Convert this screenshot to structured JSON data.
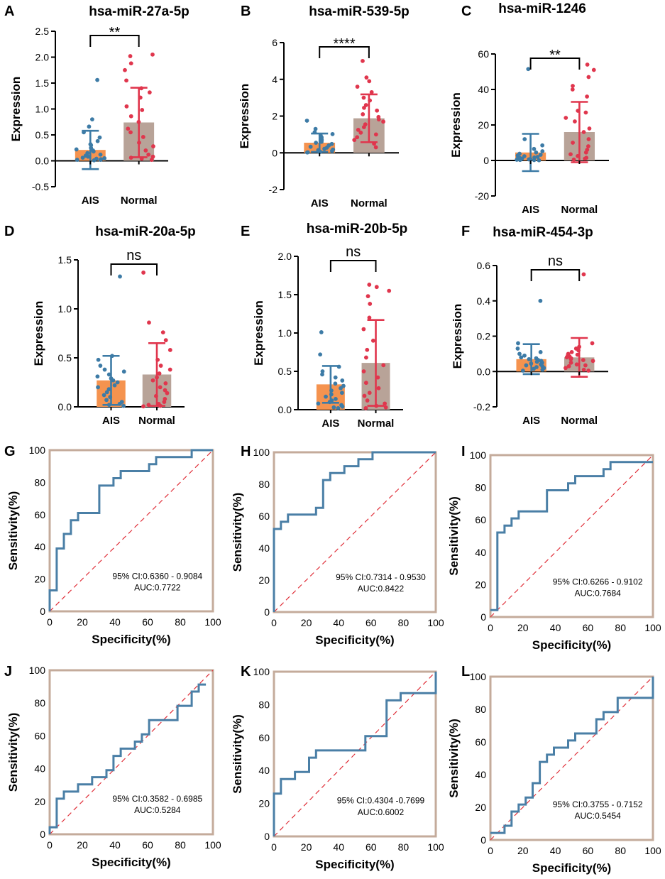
{
  "colors": {
    "ais_bar": "#f5934f",
    "normal_bar": "#b8a398",
    "ais_points": "#3d7ba6",
    "normal_points": "#e0364d",
    "roc_line": "#4a7fa6",
    "roc_frame": "#c4ab9b",
    "diag": "#e0303a"
  },
  "chart_data": [
    {
      "panel": "A",
      "type": "bar",
      "title": "hsa-miR-27a-5p",
      "ylabel": "Expression",
      "ylim": [
        -0.5,
        2.5
      ],
      "yticks": [
        -0.5,
        0.0,
        0.5,
        1.0,
        1.5,
        2.0,
        2.5
      ],
      "ytick_labels": [
        "-0.5",
        "0.0",
        "0.5",
        "1.0",
        "1.5",
        "2.0",
        "2.5"
      ],
      "significance": "**",
      "categories": [
        "AIS",
        "Normal"
      ],
      "series": [
        {
          "name": "AIS",
          "mean": 0.21,
          "sd": 0.37,
          "points": [
            1.56,
            0.8,
            0.66,
            0.55,
            0.45,
            0.38,
            0.32,
            0.3,
            0.25,
            0.22,
            0.2,
            0.18,
            0.15,
            0.12,
            0.1,
            0.08,
            0.06,
            0.05,
            0.04,
            0.03,
            0.02,
            0.02,
            0.01
          ]
        },
        {
          "name": "Normal",
          "mean": 0.74,
          "sd": 0.67,
          "points": [
            2.05,
            2.02,
            1.88,
            1.75,
            1.55,
            1.4,
            1.32,
            1.22,
            1.05,
            0.98,
            0.86,
            0.75,
            0.62,
            0.55,
            0.46,
            0.35,
            0.28,
            0.2,
            0.12,
            0.08,
            0.06,
            0.04,
            0.02
          ]
        }
      ]
    },
    {
      "panel": "B",
      "type": "bar",
      "title": "hsa-miR-539-5p",
      "ylabel": "Expression",
      "ylim": [
        -2,
        6
      ],
      "yticks": [
        -2,
        0,
        2,
        4,
        6
      ],
      "ytick_labels": [
        "-2",
        "0",
        "2",
        "4",
        "6"
      ],
      "significance": "****",
      "categories": [
        "AIS",
        "Normal"
      ],
      "series": [
        {
          "name": "AIS",
          "mean": 0.55,
          "sd": 0.5,
          "points": [
            1.75,
            1.3,
            1.12,
            1.02,
            0.95,
            0.85,
            0.78,
            0.7,
            0.6,
            0.55,
            0.48,
            0.4,
            0.33,
            0.28,
            0.22,
            0.18,
            0.15,
            0.1,
            0.08,
            0.05,
            0.04,
            0.03,
            0.02
          ]
        },
        {
          "name": "Normal",
          "mean": 1.88,
          "sd": 1.3,
          "points": [
            5.0,
            4.1,
            3.9,
            3.6,
            3.3,
            3.0,
            2.85,
            2.6,
            2.45,
            2.3,
            2.1,
            1.95,
            1.82,
            1.7,
            1.55,
            1.4,
            1.25,
            1.1,
            1.0,
            0.85,
            0.7,
            0.5,
            0.3
          ]
        }
      ]
    },
    {
      "panel": "C",
      "type": "bar",
      "title": "hsa-miR-1246",
      "ylabel": "Expression",
      "ylim": [
        -20,
        60
      ],
      "yticks": [
        -20,
        0,
        20,
        40,
        60
      ],
      "ytick_labels": [
        "-20",
        "0",
        "20",
        "40",
        "60"
      ],
      "significance": "**",
      "categories": [
        "AIS",
        "Normal"
      ],
      "series": [
        {
          "name": "AIS",
          "mean": 4.5,
          "sd": 10.5,
          "points": [
            51.5,
            12.0,
            8.5,
            6.5,
            5.2,
            4.5,
            3.8,
            3.2,
            2.8,
            2.4,
            2.0,
            1.7,
            1.4,
            1.2,
            1.0,
            0.8,
            0.6,
            0.5,
            0.4,
            0.3,
            0.2,
            0.1
          ]
        },
        {
          "name": "Normal",
          "mean": 16.0,
          "sd": 17.0,
          "points": [
            54.0,
            51.0,
            47.0,
            42.0,
            40.0,
            36.0,
            28.0,
            27.0,
            24.0,
            22.0,
            18.0,
            16.0,
            12.0,
            10.0,
            8.0,
            6.0,
            4.5,
            3.5,
            2.5,
            1.5,
            1.0,
            0.5
          ]
        }
      ]
    },
    {
      "panel": "D",
      "type": "bar",
      "title": "hsa-miR-20a-5p",
      "ylabel": "Expression",
      "ylim": [
        0,
        1.5
      ],
      "yticks": [
        0.0,
        0.5,
        1.0,
        1.5
      ],
      "ytick_labels": [
        "0.0",
        "0.5",
        "1.0",
        "1.5"
      ],
      "significance": "ns",
      "categories": [
        "AIS",
        "Normal"
      ],
      "series": [
        {
          "name": "AIS",
          "mean": 0.27,
          "sd": 0.25,
          "points": [
            1.33,
            0.52,
            0.48,
            0.42,
            0.38,
            0.36,
            0.33,
            0.31,
            0.29,
            0.27,
            0.25,
            0.22,
            0.2,
            0.18,
            0.15,
            0.12,
            0.1,
            0.07,
            0.05,
            0.03,
            0.02,
            0.01
          ]
        },
        {
          "name": "Normal",
          "mean": 0.33,
          "sd": 0.32,
          "points": [
            1.37,
            0.86,
            0.76,
            0.68,
            0.58,
            0.48,
            0.42,
            0.38,
            0.34,
            0.3,
            0.27,
            0.24,
            0.2,
            0.17,
            0.14,
            0.11,
            0.08,
            0.05,
            0.03,
            0.02,
            0.01,
            0.005
          ]
        }
      ]
    },
    {
      "panel": "E",
      "type": "bar",
      "title": "hsa-miR-20b-5p",
      "ylabel": "Expression",
      "ylim": [
        0,
        2.0
      ],
      "yticks": [
        0.0,
        0.5,
        1.0,
        1.5,
        2.0
      ],
      "ytick_labels": [
        "0.0",
        "0.5",
        "1.0",
        "1.5",
        "2.0"
      ],
      "significance": "ns",
      "categories": [
        "AIS",
        "Normal"
      ],
      "series": [
        {
          "name": "AIS",
          "mean": 0.33,
          "sd": 0.24,
          "points": [
            1.01,
            0.72,
            0.56,
            0.5,
            0.46,
            0.42,
            0.38,
            0.34,
            0.31,
            0.28,
            0.25,
            0.22,
            0.2,
            0.17,
            0.14,
            0.12,
            0.1,
            0.08,
            0.06,
            0.04,
            0.03,
            0.02
          ]
        },
        {
          "name": "Normal",
          "mean": 0.61,
          "sd": 0.56,
          "points": [
            1.63,
            1.6,
            1.55,
            1.48,
            1.38,
            1.2,
            1.05,
            0.9,
            0.78,
            0.68,
            0.58,
            0.5,
            0.42,
            0.35,
            0.28,
            0.22,
            0.18,
            0.12,
            0.08,
            0.05,
            0.03,
            0.02
          ]
        }
      ]
    },
    {
      "panel": "F",
      "type": "bar",
      "title": "hsa-miR-454-3p",
      "ylabel": "Expression",
      "ylim": [
        -0.2,
        0.6
      ],
      "yticks": [
        -0.2,
        0.0,
        0.2,
        0.4,
        0.6
      ],
      "ytick_labels": [
        "-0.2",
        "0.0",
        "0.2",
        "0.4",
        "0.6"
      ],
      "significance": "ns",
      "categories": [
        "AIS",
        "Normal"
      ],
      "series": [
        {
          "name": "AIS",
          "mean": 0.07,
          "sd": 0.085,
          "points": [
            0.4,
            0.16,
            0.13,
            0.11,
            0.1,
            0.09,
            0.08,
            0.075,
            0.07,
            0.065,
            0.06,
            0.055,
            0.05,
            0.045,
            0.04,
            0.035,
            0.03,
            0.025,
            0.02,
            0.015,
            0.01,
            0.005
          ]
        },
        {
          "name": "Normal",
          "mean": 0.08,
          "sd": 0.11,
          "points": [
            0.55,
            0.16,
            0.14,
            0.13,
            0.12,
            0.11,
            0.1,
            0.095,
            0.09,
            0.085,
            0.08,
            0.075,
            0.07,
            0.065,
            0.06,
            0.05,
            0.04,
            0.035,
            0.03,
            0.02,
            0.01,
            0.005
          ]
        }
      ]
    },
    {
      "panel": "G",
      "type": "line",
      "subtype": "roc",
      "xlabel": "Specificity(%)",
      "ylabel": "Sensitivity(%)",
      "xlim": [
        0,
        100
      ],
      "ylim": [
        0,
        100
      ],
      "ticks": [
        0,
        20,
        40,
        60,
        80,
        100
      ],
      "ci": "95% CI:0.6360 - 0.9084",
      "auc": "AUC:0.7722",
      "x": [
        0,
        0,
        4.3,
        4.3,
        8.7,
        8.7,
        13,
        13,
        17.4,
        17.4,
        30.4,
        30.4,
        39.1,
        39.1,
        43.5,
        43.5,
        52.2,
        52.2,
        60.9,
        60.9,
        65.2,
        65.2,
        73.9,
        73.9,
        87,
        87,
        100
      ],
      "y": [
        0,
        13,
        13,
        39,
        39,
        48,
        48,
        56.5,
        56.5,
        61,
        61,
        78,
        78,
        82.6,
        82.6,
        87,
        87,
        87,
        87,
        91.3,
        91.3,
        95.7,
        95.7,
        95.7,
        95.7,
        100,
        100
      ]
    },
    {
      "panel": "H",
      "type": "line",
      "subtype": "roc",
      "xlabel": "Specificity(%)",
      "ylabel": "Sensitivity(%)",
      "xlim": [
        0,
        100
      ],
      "ylim": [
        0,
        100
      ],
      "ticks": [
        0,
        20,
        40,
        60,
        80,
        100
      ],
      "ci": "95% CI:0.7314 - 0.9530",
      "auc": "AUC:0.8422",
      "x": [
        0,
        0,
        4.3,
        4.3,
        8.7,
        8.7,
        26,
        26,
        30.4,
        30.4,
        34.8,
        34.8,
        39.1,
        39.1,
        43.5,
        43.5,
        52.2,
        52.2,
        60.9,
        60.9,
        69.6,
        69.6,
        100
      ],
      "y": [
        0,
        52,
        52,
        56.5,
        56.5,
        61,
        61,
        65.2,
        65.2,
        82.6,
        82.6,
        87,
        87,
        87,
        87,
        91.3,
        91.3,
        95.7,
        95.7,
        100,
        100,
        100,
        100
      ]
    },
    {
      "panel": "I",
      "type": "line",
      "subtype": "roc",
      "xlabel": "Specificity(%)",
      "ylabel": "Sensitivity(%)",
      "xlim": [
        0,
        100
      ],
      "ylim": [
        0,
        100
      ],
      "ticks": [
        0,
        20,
        40,
        60,
        80,
        100
      ],
      "ci": "95% CI:0.6266 - 0.9102",
      "auc": "AUC:0.7684",
      "x": [
        0,
        4.3,
        4.3,
        8.7,
        8.7,
        13,
        13,
        17.4,
        17.4,
        34.8,
        34.8,
        47.8,
        47.8,
        52.2,
        52.2,
        56.5,
        56.5,
        69.6,
        69.6,
        73.9,
        73.9,
        100
      ],
      "y": [
        4.3,
        4.3,
        52.2,
        52.2,
        56.5,
        56.5,
        60.9,
        60.9,
        65.2,
        65.2,
        78.3,
        78.3,
        82.6,
        82.6,
        87,
        87,
        87,
        87,
        91.3,
        91.3,
        95.7,
        95.7
      ]
    },
    {
      "panel": "J",
      "type": "line",
      "subtype": "roc",
      "xlabel": "Specificity(%)",
      "ylabel": "Sensitivity(%)",
      "xlim": [
        0,
        100
      ],
      "ylim": [
        0,
        100
      ],
      "ticks": [
        0,
        20,
        40,
        60,
        80,
        100
      ],
      "ci": "95% CI:0.3582 - 0.6985",
      "auc": "AUC:0.5284",
      "x": [
        0,
        0,
        4.3,
        4.3,
        8.7,
        8.7,
        17.4,
        17.4,
        26,
        26,
        34.8,
        34.8,
        39.1,
        39.1,
        43.5,
        43.5,
        52.2,
        52.2,
        56.5,
        56.5,
        60.9,
        60.9,
        69.6,
        69.6,
        78.3,
        78.3,
        87,
        87,
        91.3,
        91.3,
        95.7,
        95.7
      ],
      "y": [
        0,
        4.3,
        4.3,
        21.7,
        21.7,
        26,
        26,
        30.4,
        30.4,
        34.8,
        34.8,
        39.1,
        39.1,
        47.8,
        47.8,
        52.2,
        52.2,
        56.5,
        56.5,
        60.9,
        60.9,
        69.6,
        69.6,
        69.6,
        69.6,
        78.3,
        78.3,
        87,
        87,
        91.3,
        91.3,
        91.3
      ]
    },
    {
      "panel": "K",
      "type": "line",
      "subtype": "roc",
      "xlabel": "Specificity(%)",
      "ylabel": "Sensitivity(%)",
      "xlim": [
        0,
        100
      ],
      "ylim": [
        0,
        100
      ],
      "ticks": [
        0,
        20,
        40,
        60,
        80,
        100
      ],
      "ci": "95% CI:0.4304 -0.7699",
      "auc": "AUC:0.6002",
      "x": [
        0,
        0,
        4.3,
        4.3,
        13,
        13,
        21.7,
        21.7,
        26,
        26,
        56.5,
        56.5,
        69.6,
        69.6,
        78.3,
        78.3,
        100,
        100
      ],
      "y": [
        0,
        26,
        26,
        34.8,
        34.8,
        39.1,
        39.1,
        47.8,
        47.8,
        52.2,
        52.2,
        60.9,
        60.9,
        82.6,
        82.6,
        87,
        87,
        100
      ]
    },
    {
      "panel": "L",
      "type": "line",
      "subtype": "roc",
      "xlabel": "Specificity(%)",
      "ylabel": "Sensitivity(%)",
      "xlim": [
        0,
        100
      ],
      "ylim": [
        0,
        100
      ],
      "ticks": [
        0,
        20,
        40,
        60,
        80,
        100
      ],
      "ci": "95% CI:0.3755 - 0.7152",
      "auc": "AUC:0.5454",
      "x": [
        0,
        8.7,
        8.7,
        13,
        13,
        17.4,
        17.4,
        21.7,
        21.7,
        26,
        26,
        30.4,
        30.4,
        34.8,
        34.8,
        39.1,
        39.1,
        43.5,
        43.5,
        47.8,
        47.8,
        52.2,
        52.2,
        65.2,
        65.2,
        69.6,
        69.6,
        78.3,
        78.3,
        100,
        100
      ],
      "y": [
        4.3,
        4.3,
        8.7,
        8.7,
        17.4,
        17.4,
        21.7,
        21.7,
        26,
        26,
        34.8,
        34.8,
        47.8,
        47.8,
        52.2,
        52.2,
        56.5,
        56.5,
        56.5,
        56.5,
        60.9,
        60.9,
        65.2,
        65.2,
        73.9,
        73.9,
        78.3,
        78.3,
        87,
        87,
        100
      ]
    }
  ]
}
